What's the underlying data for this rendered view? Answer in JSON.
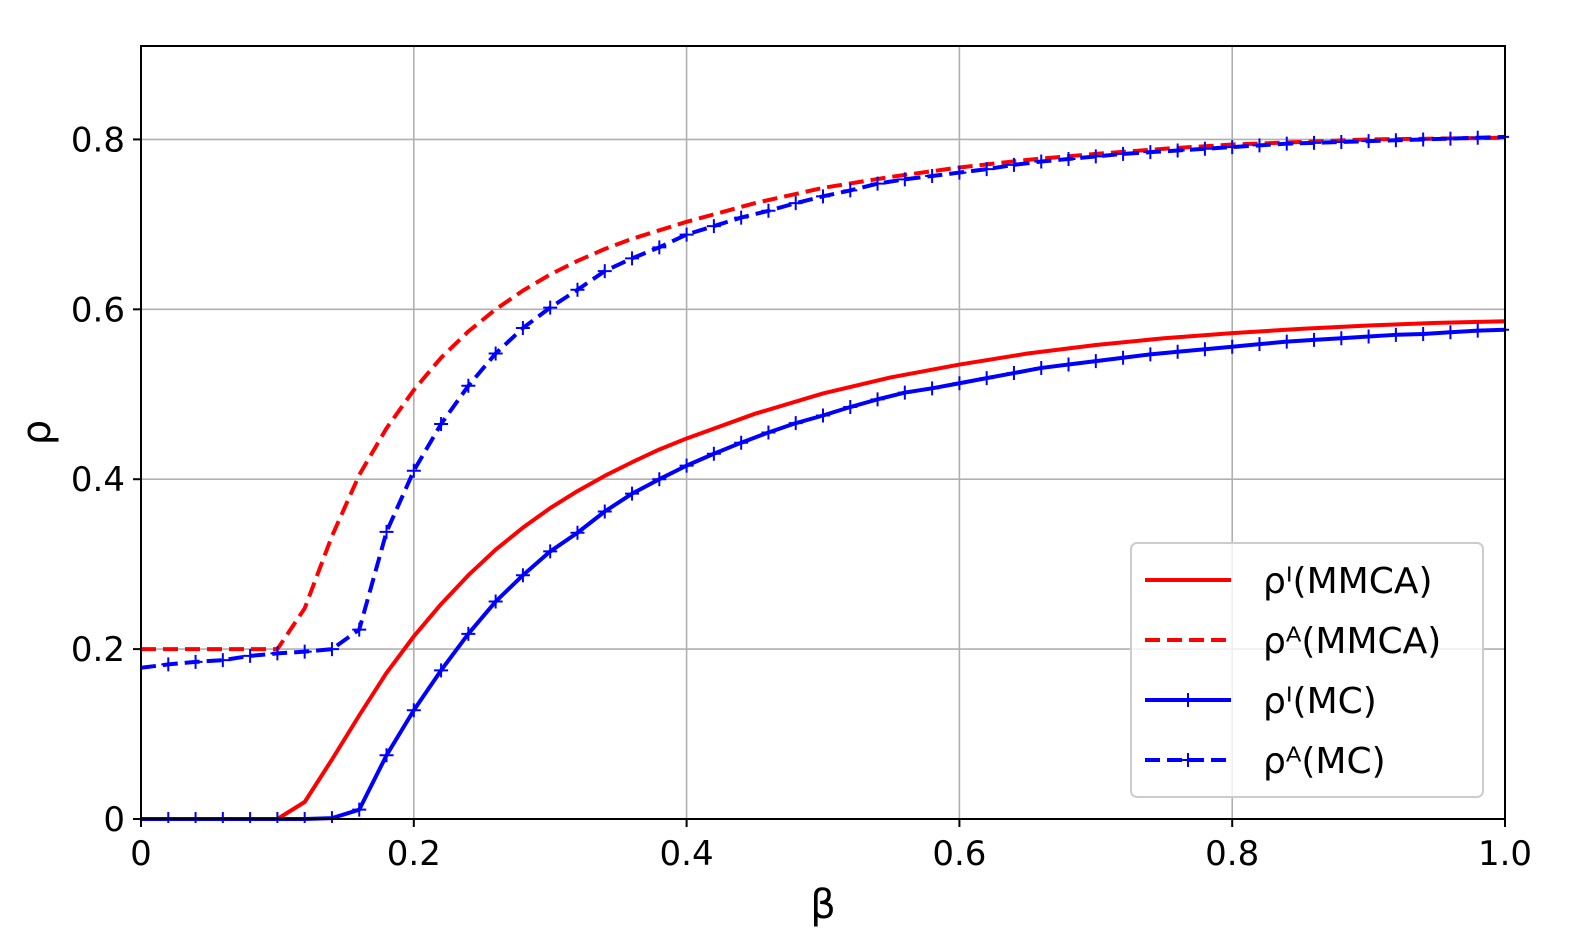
{
  "chart_data": {
    "type": "line",
    "title": "",
    "xlabel": "β",
    "ylabel": "ρ",
    "xlim": [
      0,
      1.0
    ],
    "ylim": [
      0,
      0.91
    ],
    "grid": true,
    "legend_position": "bottom-right",
    "x_ticks": [
      {
        "value": 0,
        "label": "0"
      },
      {
        "value": 0.2,
        "label": "0.2"
      },
      {
        "value": 0.4,
        "label": "0.4"
      },
      {
        "value": 0.6,
        "label": "0.6"
      },
      {
        "value": 0.8,
        "label": "0.8"
      },
      {
        "value": 1.0,
        "label": "1.0"
      }
    ],
    "y_ticks": [
      {
        "value": 0,
        "label": "0"
      },
      {
        "value": 0.2,
        "label": "0.2"
      },
      {
        "value": 0.4,
        "label": "0.4"
      },
      {
        "value": 0.6,
        "label": "0.6"
      },
      {
        "value": 0.8,
        "label": "0.8"
      }
    ],
    "series": [
      {
        "name": "ρᴵ(MMCA)",
        "color": "#ff0000",
        "style": "solid",
        "marker": "none",
        "points": [
          [
            0,
            0
          ],
          [
            0.1,
            0
          ],
          [
            0.12,
            0.02
          ],
          [
            0.14,
            0.07
          ],
          [
            0.16,
            0.122
          ],
          [
            0.18,
            0.172
          ],
          [
            0.2,
            0.215
          ],
          [
            0.22,
            0.253
          ],
          [
            0.24,
            0.287
          ],
          [
            0.26,
            0.317
          ],
          [
            0.28,
            0.343
          ],
          [
            0.3,
            0.366
          ],
          [
            0.32,
            0.386
          ],
          [
            0.34,
            0.404
          ],
          [
            0.36,
            0.42
          ],
          [
            0.38,
            0.435
          ],
          [
            0.4,
            0.448
          ],
          [
            0.45,
            0.477
          ],
          [
            0.5,
            0.501
          ],
          [
            0.55,
            0.52
          ],
          [
            0.6,
            0.535
          ],
          [
            0.65,
            0.548
          ],
          [
            0.7,
            0.558
          ],
          [
            0.75,
            0.566
          ],
          [
            0.8,
            0.572
          ],
          [
            0.85,
            0.577
          ],
          [
            0.9,
            0.581
          ],
          [
            0.95,
            0.584
          ],
          [
            1.0,
            0.586
          ]
        ]
      },
      {
        "name": "ρᴬ(MMCA)",
        "color": "#ff0000",
        "style": "dashed",
        "marker": "none",
        "points": [
          [
            0,
            0.2
          ],
          [
            0.1,
            0.2
          ],
          [
            0.12,
            0.248
          ],
          [
            0.14,
            0.333
          ],
          [
            0.16,
            0.405
          ],
          [
            0.18,
            0.46
          ],
          [
            0.2,
            0.505
          ],
          [
            0.22,
            0.543
          ],
          [
            0.24,
            0.574
          ],
          [
            0.26,
            0.6
          ],
          [
            0.28,
            0.622
          ],
          [
            0.3,
            0.641
          ],
          [
            0.32,
            0.657
          ],
          [
            0.34,
            0.671
          ],
          [
            0.36,
            0.683
          ],
          [
            0.38,
            0.693
          ],
          [
            0.4,
            0.703
          ],
          [
            0.45,
            0.725
          ],
          [
            0.5,
            0.743
          ],
          [
            0.55,
            0.756
          ],
          [
            0.6,
            0.767
          ],
          [
            0.65,
            0.776
          ],
          [
            0.7,
            0.783
          ],
          [
            0.75,
            0.789
          ],
          [
            0.8,
            0.794
          ],
          [
            0.85,
            0.797
          ],
          [
            0.9,
            0.8
          ],
          [
            0.95,
            0.801
          ],
          [
            1.0,
            0.802
          ]
        ]
      },
      {
        "name": "ρᴵ(MC)",
        "color": "#0000ff",
        "style": "solid",
        "marker": "plus",
        "points": [
          [
            0,
            0
          ],
          [
            0.02,
            0
          ],
          [
            0.04,
            0
          ],
          [
            0.06,
            0
          ],
          [
            0.08,
            0
          ],
          [
            0.1,
            0
          ],
          [
            0.12,
            0
          ],
          [
            0.14,
            0.001
          ],
          [
            0.16,
            0.011
          ],
          [
            0.18,
            0.075
          ],
          [
            0.2,
            0.128
          ],
          [
            0.22,
            0.175
          ],
          [
            0.24,
            0.218
          ],
          [
            0.26,
            0.256
          ],
          [
            0.28,
            0.287
          ],
          [
            0.3,
            0.315
          ],
          [
            0.32,
            0.337
          ],
          [
            0.34,
            0.362
          ],
          [
            0.36,
            0.383
          ],
          [
            0.38,
            0.4
          ],
          [
            0.4,
            0.416
          ],
          [
            0.42,
            0.43
          ],
          [
            0.44,
            0.443
          ],
          [
            0.46,
            0.455
          ],
          [
            0.48,
            0.466
          ],
          [
            0.5,
            0.475
          ],
          [
            0.52,
            0.485
          ],
          [
            0.54,
            0.494
          ],
          [
            0.56,
            0.502
          ],
          [
            0.58,
            0.507
          ],
          [
            0.6,
            0.513
          ],
          [
            0.62,
            0.519
          ],
          [
            0.64,
            0.525
          ],
          [
            0.66,
            0.531
          ],
          [
            0.68,
            0.535
          ],
          [
            0.7,
            0.539
          ],
          [
            0.72,
            0.543
          ],
          [
            0.74,
            0.547
          ],
          [
            0.76,
            0.55
          ],
          [
            0.78,
            0.553
          ],
          [
            0.8,
            0.556
          ],
          [
            0.82,
            0.559
          ],
          [
            0.84,
            0.562
          ],
          [
            0.86,
            0.564
          ],
          [
            0.88,
            0.566
          ],
          [
            0.9,
            0.568
          ],
          [
            0.92,
            0.57
          ],
          [
            0.94,
            0.571
          ],
          [
            0.96,
            0.573
          ],
          [
            0.98,
            0.575
          ],
          [
            1.0,
            0.576
          ]
        ]
      },
      {
        "name": "ρᴬ(MC)",
        "color": "#0000ff",
        "style": "dashed",
        "marker": "plus",
        "points": [
          [
            0,
            0.178
          ],
          [
            0.02,
            0.182
          ],
          [
            0.04,
            0.185
          ],
          [
            0.06,
            0.187
          ],
          [
            0.08,
            0.192
          ],
          [
            0.1,
            0.195
          ],
          [
            0.12,
            0.197
          ],
          [
            0.14,
            0.2
          ],
          [
            0.16,
            0.223
          ],
          [
            0.18,
            0.338
          ],
          [
            0.2,
            0.41
          ],
          [
            0.22,
            0.465
          ],
          [
            0.24,
            0.51
          ],
          [
            0.26,
            0.548
          ],
          [
            0.28,
            0.578
          ],
          [
            0.3,
            0.602
          ],
          [
            0.32,
            0.623
          ],
          [
            0.34,
            0.645
          ],
          [
            0.36,
            0.66
          ],
          [
            0.38,
            0.673
          ],
          [
            0.4,
            0.688
          ],
          [
            0.42,
            0.698
          ],
          [
            0.44,
            0.708
          ],
          [
            0.46,
            0.716
          ],
          [
            0.48,
            0.725
          ],
          [
            0.5,
            0.733
          ],
          [
            0.52,
            0.74
          ],
          [
            0.54,
            0.748
          ],
          [
            0.56,
            0.753
          ],
          [
            0.58,
            0.757
          ],
          [
            0.6,
            0.761
          ],
          [
            0.62,
            0.765
          ],
          [
            0.64,
            0.77
          ],
          [
            0.66,
            0.774
          ],
          [
            0.68,
            0.777
          ],
          [
            0.7,
            0.78
          ],
          [
            0.72,
            0.783
          ],
          [
            0.74,
            0.785
          ],
          [
            0.76,
            0.787
          ],
          [
            0.78,
            0.789
          ],
          [
            0.8,
            0.791
          ],
          [
            0.82,
            0.793
          ],
          [
            0.84,
            0.795
          ],
          [
            0.86,
            0.796
          ],
          [
            0.88,
            0.797
          ],
          [
            0.9,
            0.798
          ],
          [
            0.92,
            0.799
          ],
          [
            0.94,
            0.8
          ],
          [
            0.96,
            0.801
          ],
          [
            0.98,
            0.802
          ],
          [
            1.0,
            0.803
          ]
        ]
      }
    ]
  }
}
